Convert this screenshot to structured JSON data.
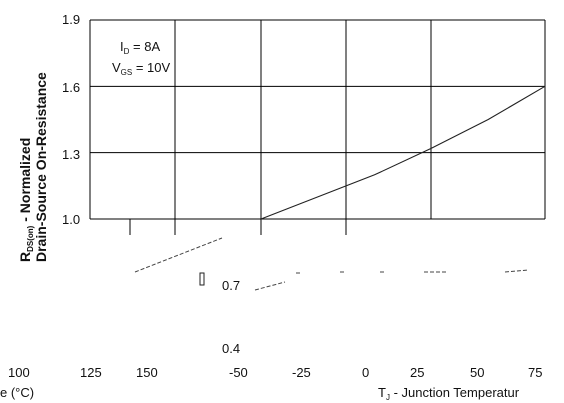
{
  "chart_data": {
    "type": "line",
    "title": "",
    "xlabel_left_fragment": "e (°C)",
    "xlabel": "TJ - Junction Temperature",
    "xlabel_main": "T",
    "xlabel_sub": "J",
    "xlabel_rest": " - Junction Temperatur",
    "ylabel_line1_prefix": "R",
    "ylabel_line1_sub": "DS(on)",
    "ylabel_line1_rest": " - Normalized",
    "ylabel_line2": "Drain-Source On-Resistance",
    "annotation": {
      "id_label": "I",
      "id_sub": "D",
      "id_value": " = 8A",
      "vgs_label": "V",
      "vgs_sub": "GS",
      "vgs_value": " = 10V"
    },
    "y_ticks": [
      "1.9",
      "1.6",
      "1.3",
      "1.0",
      "0.7",
      "0.4"
    ],
    "x_ticks_left": [
      "100",
      "125",
      "150"
    ],
    "x_ticks_right": [
      "-50",
      "-25",
      "0",
      "25",
      "50",
      "75"
    ],
    "x_range": [
      -50,
      75
    ],
    "y_range": [
      0.4,
      1.9
    ],
    "grid": true,
    "series": [
      {
        "x": [
          -50,
          -25,
          0,
          25,
          50,
          75
        ],
        "y": [
          1.0,
          1.1,
          1.2,
          1.32,
          1.45,
          1.6
        ]
      }
    ],
    "fragment_series": {
      "x": [
        -55,
        -50,
        -45,
        -35,
        -25,
        -15
      ],
      "y": [
        0.74,
        0.75,
        0.76,
        0.775,
        0.785,
        0.78
      ]
    }
  }
}
